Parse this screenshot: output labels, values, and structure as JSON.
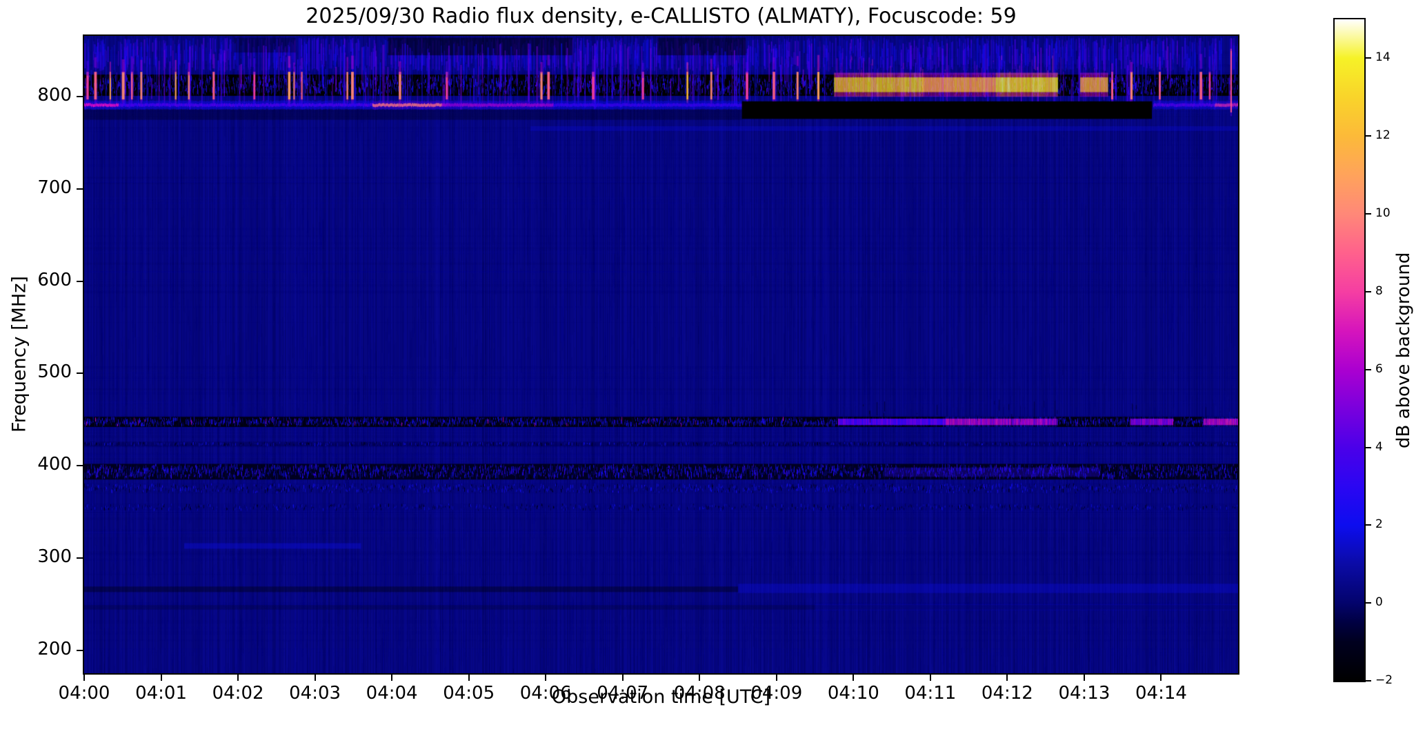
{
  "chart_data": {
    "type": "heatmap",
    "title": "2025/09/30  Radio flux density, e-CALLISTO (ALMATY), Focuscode: 59",
    "xlabel": "Observation time [UTC]",
    "ylabel": "Frequency [MHz]",
    "x_ticks": [
      "04:00",
      "04:01",
      "04:02",
      "04:03",
      "04:04",
      "04:05",
      "04:06",
      "04:07",
      "04:08",
      "04:09",
      "04:10",
      "04:11",
      "04:12",
      "04:13",
      "04:14"
    ],
    "x_tick_minutes": [
      0,
      1,
      2,
      3,
      4,
      5,
      6,
      7,
      8,
      9,
      10,
      11,
      12,
      13,
      14
    ],
    "x_range_minutes": [
      0,
      15
    ],
    "y_ticks": [
      800,
      700,
      600,
      500,
      400,
      300,
      200
    ],
    "y_range_mhz": [
      175,
      866
    ],
    "grid": false,
    "colorbar": {
      "label": "dB above background",
      "range": [
        -2,
        15
      ],
      "tick_values": [
        -2,
        0,
        2,
        4,
        6,
        8,
        10,
        12,
        14
      ],
      "tick_labels": [
        "−2",
        "0",
        "2",
        "4",
        "6",
        "8",
        "10",
        "12",
        "14"
      ],
      "stops": [
        [
          -2,
          "#000000"
        ],
        [
          -1,
          "#00001f"
        ],
        [
          -0.5,
          "#000042"
        ],
        [
          0,
          "#03036c"
        ],
        [
          1,
          "#0b0ba6"
        ],
        [
          2,
          "#0d0def"
        ],
        [
          3,
          "#2b06f2"
        ],
        [
          4,
          "#4b00e9"
        ],
        [
          5,
          "#7a00dd"
        ],
        [
          6,
          "#ab00d0"
        ],
        [
          7,
          "#d615bc"
        ],
        [
          8,
          "#f53ea2"
        ],
        [
          9,
          "#ff618c"
        ],
        [
          10,
          "#ff8878"
        ],
        [
          11,
          "#ffa35b"
        ],
        [
          12,
          "#fcba39"
        ],
        [
          13,
          "#f9d42a"
        ],
        [
          14,
          "#f6f227"
        ],
        [
          15,
          "#ffffff"
        ]
      ]
    },
    "background_noise": {
      "base_v": 0.35,
      "col_jitter": 0.55,
      "texture_dashes": 11000,
      "dash_alpha": 0.15,
      "row_count": 90
    },
    "features": [
      {
        "type": "streaks_random",
        "name": "upper-noise-streaks",
        "t": [
          0,
          15
        ],
        "f": [
          828,
          864
        ],
        "count": 1500,
        "v": [
          0.5,
          4.5
        ],
        "w": [
          1,
          2
        ],
        "alpha": [
          0.2,
          0.65
        ]
      },
      {
        "type": "rect",
        "name": "top-dark-patch-1",
        "t": [
          3.95,
          6.35
        ],
        "f": [
          845,
          864
        ],
        "v": -1.6,
        "alpha": 0.55
      },
      {
        "type": "rect",
        "name": "top-dark-patch-2",
        "t": [
          7.45,
          8.6
        ],
        "f": [
          845,
          864
        ],
        "v": -1.6,
        "alpha": 0.5
      },
      {
        "type": "rect",
        "name": "top-dark-patch-3",
        "t": [
          1.95,
          2.75
        ],
        "f": [
          848,
          864
        ],
        "v": -1.4,
        "alpha": 0.35
      },
      {
        "type": "speckle",
        "name": "rfi-band-800",
        "t": [
          0,
          15
        ],
        "f": [
          801,
          824
        ],
        "base_v": -2,
        "base_alpha": 1,
        "dash_v": [
          -1.8,
          3.5
        ],
        "density": 2.2,
        "dash_h": [
          2,
          10
        ]
      },
      {
        "type": "streaks_random",
        "name": "band-800-blue-streaks",
        "t": [
          0,
          15
        ],
        "f": [
          786,
          858
        ],
        "count": 450,
        "v": [
          1,
          5
        ],
        "w": [
          1,
          2
        ],
        "alpha": [
          0.3,
          0.8
        ]
      },
      {
        "type": "streaks_list",
        "name": "hot-rfi-streaks",
        "f_default": [
          797,
          827
        ],
        "streaks": [
          [
            0.03,
            8
          ],
          [
            0.13,
            9
          ],
          [
            0.33,
            11
          ],
          [
            0.49,
            10
          ],
          [
            0.61,
            9
          ],
          [
            0.73,
            10
          ],
          [
            1.18,
            11
          ],
          [
            1.35,
            10
          ],
          [
            1.67,
            9
          ],
          [
            2.2,
            8
          ],
          [
            2.65,
            11
          ],
          [
            2.72,
            10
          ],
          [
            2.82,
            9
          ],
          [
            3.41,
            10
          ],
          [
            3.47,
            10
          ],
          [
            4.09,
            10
          ],
          [
            4.7,
            8
          ],
          [
            5.93,
            10
          ],
          [
            6.02,
            9
          ],
          [
            6.6,
            8
          ],
          [
            7.25,
            8
          ],
          [
            7.83,
            12
          ],
          [
            8.14,
            10
          ],
          [
            8.6,
            8
          ],
          [
            8.95,
            9
          ],
          [
            9.26,
            10
          ],
          [
            9.53,
            11
          ],
          [
            13.35,
            9
          ],
          [
            13.6,
            10
          ],
          [
            13.97,
            9
          ],
          [
            14.5,
            9
          ],
          [
            14.62,
            8
          ]
        ]
      },
      {
        "type": "glowband",
        "name": "bright-emission-810",
        "f": [
          805,
          821
        ],
        "fringe_mhz": 5,
        "segments": [
          {
            "t": [
              9.75,
              10.9
            ],
            "v": [
              11,
              14
            ]
          },
          {
            "t": [
              10.9,
              11.85
            ],
            "v": [
              9.5,
              12.5
            ]
          },
          {
            "t": [
              11.85,
              12.65
            ],
            "v": [
              12,
              14.5
            ]
          },
          {
            "t": [
              12.95,
              13.3
            ],
            "v": [
              10,
              13
            ]
          }
        ]
      },
      {
        "type": "hline",
        "name": "carrier-line-790",
        "f": 791,
        "half_mhz": 1.6,
        "glow_half_mhz": 4.5,
        "segments": [
          {
            "t": [
              0,
              0.45
            ],
            "v": 6.5,
            "glow_v": 2.5
          },
          {
            "t": [
              0.45,
              3.75
            ],
            "v": 3.8,
            "glow_v": 2.2
          },
          {
            "t": [
              3.75,
              4.65
            ],
            "v": 9.5,
            "glow_v": 4
          },
          {
            "t": [
              4.65,
              6.1
            ],
            "v": 6,
            "glow_v": 3
          },
          {
            "t": [
              6.1,
              8.55
            ],
            "v": 3.5,
            "glow_v": 2
          },
          {
            "t": [
              13.9,
              14.7
            ],
            "v": 4.2,
            "glow_v": 2.2
          },
          {
            "t": [
              14.7,
              15
            ],
            "v": 7.5,
            "glow_v": 3
          }
        ]
      },
      {
        "type": "rect",
        "name": "data-gap-black",
        "t": [
          8.55,
          13.88
        ],
        "f": [
          776,
          795
        ],
        "v": -2,
        "alpha": 1
      },
      {
        "type": "rect",
        "name": "shade-below-line",
        "t": [
          0,
          8.55
        ],
        "f": [
          775,
          786
        ],
        "v": -1.2,
        "alpha": 0.35
      },
      {
        "type": "rect",
        "name": "faint-line-765",
        "t": [
          5.8,
          15
        ],
        "f": [
          763,
          768
        ],
        "v": 1.8,
        "alpha": 0.3
      },
      {
        "type": "speckle",
        "name": "rfi-band-450",
        "t": [
          0,
          15
        ],
        "f": [
          442,
          453
        ],
        "base_v": -1.8,
        "base_alpha": 0.9,
        "dash_v": [
          -1.5,
          3
        ],
        "density": 1.6,
        "dash_h": [
          2,
          8
        ],
        "bright_prob": 0.015,
        "bright_v": 6.5
      },
      {
        "type": "glowband",
        "name": "bright-450-right",
        "f": [
          444,
          451
        ],
        "fringe_mhz": 2,
        "segments": [
          {
            "t": [
              9.8,
              11.2
            ],
            "v": [
              3,
              5
            ]
          },
          {
            "t": [
              11.2,
              12.65
            ],
            "v": [
              4.5,
              7
            ]
          },
          {
            "t": [
              13.6,
              14.15
            ],
            "v": [
              4,
              6.5
            ]
          },
          {
            "t": [
              14.55,
              15
            ],
            "v": [
              5,
              7.5
            ]
          }
        ]
      },
      {
        "type": "speckle",
        "name": "faint-line-423",
        "t": [
          0,
          15
        ],
        "f": [
          421,
          426
        ],
        "base_v": -0.5,
        "base_alpha": 0.35,
        "dash_v": [
          -1.5,
          2
        ],
        "density": 0.5,
        "dash_h": [
          2,
          5
        ]
      },
      {
        "type": "speckle",
        "name": "rfi-band-395",
        "t": [
          0,
          15
        ],
        "f": [
          385,
          402
        ],
        "base_v": -1.5,
        "base_alpha": 0.85,
        "dash_v": [
          -1.8,
          3.5
        ],
        "density": 2.0,
        "dash_h": [
          2,
          9
        ]
      },
      {
        "type": "speckle",
        "name": "dash-row-375",
        "t": [
          0,
          15
        ],
        "f": [
          370,
          381
        ],
        "base_v": 0,
        "base_alpha": 0.2,
        "dash_v": [
          -1.5,
          2.5
        ],
        "density": 0.8,
        "dash_h": [
          2,
          6
        ]
      },
      {
        "type": "speckle",
        "name": "dash-row-355",
        "t": [
          0,
          15
        ],
        "f": [
          351,
          359
        ],
        "base_v": 0,
        "base_alpha": 0.15,
        "dash_v": [
          -1.5,
          2
        ],
        "density": 0.5,
        "dash_h": [
          2,
          5
        ]
      },
      {
        "type": "rect",
        "name": "bright-dashes-395-right",
        "t": [
          10.4,
          13.2
        ],
        "f": [
          388,
          398
        ],
        "v": 3,
        "alpha": 0.3
      },
      {
        "type": "rect",
        "name": "faint-line-313",
        "t": [
          1.3,
          3.6
        ],
        "f": [
          310,
          316
        ],
        "v": 2,
        "alpha": 0.35
      },
      {
        "type": "rect",
        "name": "dark-line-267-left",
        "t": [
          0,
          8.5
        ],
        "f": [
          263,
          269
        ],
        "v": -1.5,
        "alpha": 0.4
      },
      {
        "type": "rect",
        "name": "bright-line-267-right",
        "t": [
          8.5,
          15
        ],
        "f": [
          262,
          272
        ],
        "v": 2,
        "alpha": 0.3
      },
      {
        "type": "rect",
        "name": "faint-dark-line-247",
        "t": [
          0,
          15
        ],
        "f": [
          244,
          249
        ],
        "v": -1,
        "alpha": 0.25
      },
      {
        "type": "rect",
        "name": "bright-line-247-right",
        "t": [
          9.5,
          15
        ],
        "f": [
          243,
          250
        ],
        "v": 1.5,
        "alpha": 0.2
      },
      {
        "type": "streaks_list",
        "name": "tall-pink-streak",
        "f_default": [
          783,
          852
        ],
        "streaks": [
          [
            14.9,
            8.5
          ]
        ]
      }
    ]
  }
}
